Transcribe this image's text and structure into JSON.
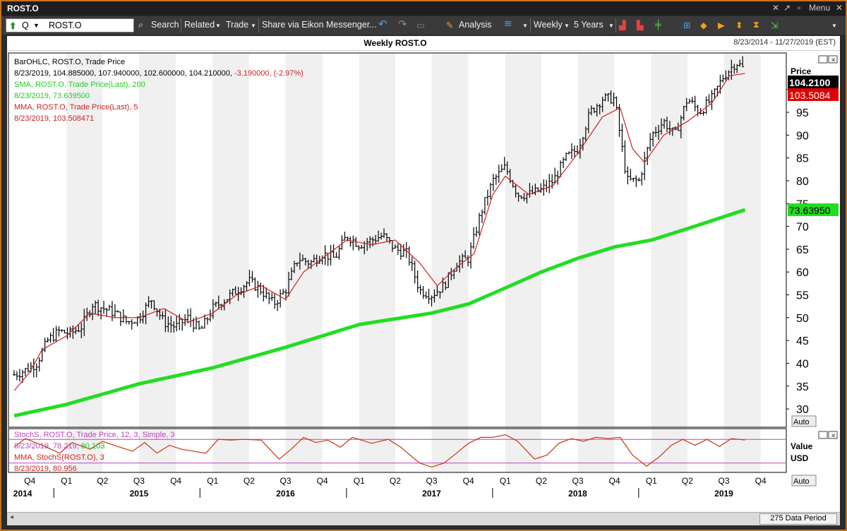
{
  "window": {
    "title": "ROST.O",
    "menu_label": "Menu"
  },
  "toolbar": {
    "ric_value": "ROST.O",
    "q_label": "Q",
    "search_label": "Search",
    "related_label": "Related",
    "trade_label": "Trade",
    "share_label": "Share via Eikon Messenger...",
    "analysis_label": "Analysis",
    "interval_label": "Weekly",
    "range_label": "5 Years"
  },
  "chart_header": {
    "title": "Weekly ROST.O",
    "date_range": "8/23/2014 - 11/27/2019 (EST)"
  },
  "legend": {
    "line1": "BarOHLC, ROST.O, Trade Price",
    "line2": "8/23/2019, 104.885000, 107.940000, 102.600000, 104.210000,",
    "line2_change": "-3.190000, (-2.97%)",
    "line3": "SMA, ROST.O, Trade Price(Last), 200",
    "line4": "8/23/2019, 73.639500",
    "line5": "MMA, ROST.O, Trade Price(Last), 5",
    "line6": "8/23/2019, 103.508471"
  },
  "stoch_legend": {
    "line1": "StochS, ROST.O, Trade Price, 12, 3, Simple, 3",
    "line2a": "8/23/2019, 78.219,",
    "line2b": "80.103",
    "line3": "MMA, StochS(ROST.O), 3",
    "line4": "8/23/2019, 80.956"
  },
  "axis": {
    "price_label": "Price",
    "value_label": "Value",
    "usd_label": "USD",
    "auto_label": "Auto",
    "last_price": "104.2100",
    "mma_value": "103.5084",
    "sma_value": "73.63950"
  },
  "footer": {
    "data_period": "275 Data Period"
  },
  "colors": {
    "bars": "#000000",
    "sma": "#22dd22",
    "mma": "#cc2222",
    "stoch_k": "#cc3311",
    "bands": "#bb44bb"
  },
  "chart_data": [
    {
      "type": "line",
      "title": "Weekly ROST.O",
      "ylabel": "Price",
      "ylim": [
        26,
        108
      ],
      "yticks": [
        30,
        35,
        40,
        45,
        50,
        55,
        60,
        65,
        70,
        75,
        80,
        85,
        90,
        95,
        100
      ],
      "x_range": [
        "2014-08-23",
        "2019-11-27"
      ],
      "x_quarters": [
        {
          "label": "Q4",
          "date": "2014-10-01"
        },
        {
          "label": "Q1",
          "date": "2015-01-01"
        },
        {
          "label": "Q2",
          "date": "2015-04-01"
        },
        {
          "label": "Q3",
          "date": "2015-07-01"
        },
        {
          "label": "Q4",
          "date": "2015-10-01"
        },
        {
          "label": "Q1",
          "date": "2016-01-01"
        },
        {
          "label": "Q2",
          "date": "2016-04-01"
        },
        {
          "label": "Q3",
          "date": "2016-07-01"
        },
        {
          "label": "Q4",
          "date": "2016-10-01"
        },
        {
          "label": "Q1",
          "date": "2017-01-01"
        },
        {
          "label": "Q2",
          "date": "2017-04-01"
        },
        {
          "label": "Q3",
          "date": "2017-07-01"
        },
        {
          "label": "Q4",
          "date": "2017-10-01"
        },
        {
          "label": "Q1",
          "date": "2018-01-01"
        },
        {
          "label": "Q2",
          "date": "2018-04-01"
        },
        {
          "label": "Q3",
          "date": "2018-07-01"
        },
        {
          "label": "Q4",
          "date": "2018-10-01"
        },
        {
          "label": "Q1",
          "date": "2019-01-01"
        },
        {
          "label": "Q2",
          "date": "2019-04-01"
        },
        {
          "label": "Q3",
          "date": "2019-07-01"
        },
        {
          "label": "Q4",
          "date": "2019-10-01"
        }
      ],
      "x_years": [
        {
          "label": "2014",
          "date": "2014-10-01"
        },
        {
          "label": "2015",
          "date": "2015-07-01"
        },
        {
          "label": "2016",
          "date": "2016-07-01"
        },
        {
          "label": "2017",
          "date": "2017-07-01"
        },
        {
          "label": "2018",
          "date": "2018-07-01"
        },
        {
          "label": "2019",
          "date": "2019-07-01"
        }
      ],
      "series": [
        {
          "name": "BarOHLC, ROST.O, Trade Price",
          "kind": "bars",
          "points": [
            [
              "2014-08-23",
              37.5
            ],
            [
              "2014-09-20",
              38.5
            ],
            [
              "2014-10-18",
              40
            ],
            [
              "2014-11-15",
              45
            ],
            [
              "2014-12-13",
              47
            ],
            [
              "2015-01-10",
              46.5
            ],
            [
              "2015-02-07",
              48
            ],
            [
              "2015-03-07",
              53
            ],
            [
              "2015-04-04",
              52
            ],
            [
              "2015-05-02",
              51
            ],
            [
              "2015-06-01",
              49
            ],
            [
              "2015-07-01",
              50
            ],
            [
              "2015-08-01",
              54
            ],
            [
              "2015-09-01",
              49
            ],
            [
              "2015-10-01",
              48
            ],
            [
              "2015-11-01",
              50
            ],
            [
              "2015-12-01",
              47
            ],
            [
              "2016-01-01",
              52
            ],
            [
              "2016-02-01",
              54
            ],
            [
              "2016-03-01",
              56
            ],
            [
              "2016-04-01",
              58
            ],
            [
              "2016-05-01",
              56
            ],
            [
              "2016-06-01",
              53
            ],
            [
              "2016-07-01",
              56
            ],
            [
              "2016-08-01",
              63
            ],
            [
              "2016-09-01",
              62
            ],
            [
              "2016-10-01",
              64
            ],
            [
              "2016-11-01",
              63
            ],
            [
              "2016-12-01",
              68
            ],
            [
              "2017-01-01",
              66
            ],
            [
              "2017-02-01",
              67
            ],
            [
              "2017-03-01",
              68
            ],
            [
              "2017-04-01",
              65
            ],
            [
              "2017-05-01",
              64
            ],
            [
              "2017-06-01",
              56
            ],
            [
              "2017-07-01",
              55
            ],
            [
              "2017-08-01",
              57
            ],
            [
              "2017-09-01",
              62
            ],
            [
              "2017-10-01",
              63
            ],
            [
              "2017-11-01",
              73
            ],
            [
              "2017-12-01",
              80
            ],
            [
              "2018-01-01",
              83
            ],
            [
              "2018-02-01",
              77
            ],
            [
              "2018-03-01",
              77
            ],
            [
              "2018-04-01",
              78
            ],
            [
              "2018-05-01",
              80
            ],
            [
              "2018-06-01",
              85
            ],
            [
              "2018-07-01",
              87
            ],
            [
              "2018-08-01",
              95
            ],
            [
              "2018-09-01",
              98
            ],
            [
              "2018-10-01",
              98
            ],
            [
              "2018-11-01",
              80
            ],
            [
              "2018-12-01",
              80
            ],
            [
              "2019-01-01",
              90
            ],
            [
              "2019-02-01",
              93
            ],
            [
              "2019-03-01",
              90
            ],
            [
              "2019-04-01",
              98
            ],
            [
              "2019-05-01",
              95
            ],
            [
              "2019-06-01",
              98
            ],
            [
              "2019-07-01",
              103
            ],
            [
              "2019-08-01",
              106
            ],
            [
              "2019-08-23",
              104.21
            ]
          ]
        },
        {
          "name": "SMA, ROST.O, Trade Price(Last), 200",
          "kind": "line",
          "points": [
            [
              "2014-08-23",
              28.5
            ],
            [
              "2015-01-01",
              31
            ],
            [
              "2015-07-01",
              35.5
            ],
            [
              "2016-01-01",
              39
            ],
            [
              "2016-07-01",
              43.5
            ],
            [
              "2017-01-01",
              48.5
            ],
            [
              "2017-07-01",
              51
            ],
            [
              "2017-10-01",
              53
            ],
            [
              "2018-01-01",
              56.5
            ],
            [
              "2018-04-01",
              60
            ],
            [
              "2018-07-01",
              63
            ],
            [
              "2018-10-01",
              65.5
            ],
            [
              "2019-01-01",
              67
            ],
            [
              "2019-04-01",
              69.5
            ],
            [
              "2019-08-23",
              73.6395
            ]
          ]
        },
        {
          "name": "MMA, ROST.O, Trade Price(Last), 5",
          "kind": "line",
          "points": [
            [
              "2014-08-23",
              34
            ],
            [
              "2014-10-01",
              38
            ],
            [
              "2014-11-01",
              43
            ],
            [
              "2015-01-01",
              46
            ],
            [
              "2015-03-01",
              51
            ],
            [
              "2015-05-01",
              50
            ],
            [
              "2015-07-01",
              50
            ],
            [
              "2015-09-01",
              52
            ],
            [
              "2015-11-01",
              49
            ],
            [
              "2016-01-01",
              51
            ],
            [
              "2016-03-01",
              55
            ],
            [
              "2016-05-01",
              57
            ],
            [
              "2016-07-01",
              54
            ],
            [
              "2016-08-15",
              60
            ],
            [
              "2016-10-01",
              63
            ],
            [
              "2016-12-01",
              67
            ],
            [
              "2017-02-01",
              66
            ],
            [
              "2017-04-01",
              67
            ],
            [
              "2017-06-01",
              62
            ],
            [
              "2017-07-15",
              57
            ],
            [
              "2017-09-01",
              61
            ],
            [
              "2017-10-15",
              64
            ],
            [
              "2017-12-01",
              77
            ],
            [
              "2018-01-01",
              81
            ],
            [
              "2018-03-01",
              77
            ],
            [
              "2018-05-01",
              79
            ],
            [
              "2018-07-01",
              86
            ],
            [
              "2018-09-01",
              94
            ],
            [
              "2018-10-15",
              96
            ],
            [
              "2018-11-15",
              87
            ],
            [
              "2018-12-15",
              84
            ],
            [
              "2019-02-01",
              90
            ],
            [
              "2019-04-01",
              93
            ],
            [
              "2019-06-01",
              97
            ],
            [
              "2019-07-15",
              103
            ],
            [
              "2019-08-23",
              103.508
            ]
          ]
        }
      ]
    },
    {
      "type": "line",
      "title": "StochS, ROST.O, Trade Price, 12, 3, Simple, 3",
      "ylim": [
        0,
        100
      ],
      "bands": [
        80,
        20
      ],
      "series": [
        {
          "name": "StochS",
          "points": [
            [
              "2014-08-23",
              60
            ],
            [
              "2014-09-20",
              82
            ],
            [
              "2014-11-01",
              65
            ],
            [
              "2014-12-15",
              45
            ],
            [
              "2015-01-15",
              72
            ],
            [
              "2015-03-01",
              55
            ],
            [
              "2015-04-01",
              75
            ],
            [
              "2015-05-15",
              60
            ],
            [
              "2015-06-15",
              50
            ],
            [
              "2015-07-15",
              72
            ],
            [
              "2015-08-15",
              45
            ],
            [
              "2015-09-15",
              65
            ],
            [
              "2015-10-15",
              55
            ],
            [
              "2015-12-15",
              45
            ],
            [
              "2016-01-15",
              80
            ],
            [
              "2016-02-15",
              78
            ],
            [
              "2016-03-15",
              80
            ],
            [
              "2016-05-01",
              78
            ],
            [
              "2016-06-15",
              30
            ],
            [
              "2016-07-15",
              55
            ],
            [
              "2016-08-15",
              85
            ],
            [
              "2016-09-15",
              72
            ],
            [
              "2016-10-15",
              78
            ],
            [
              "2016-11-15",
              60
            ],
            [
              "2016-12-15",
              85
            ],
            [
              "2017-02-01",
              70
            ],
            [
              "2017-03-15",
              80
            ],
            [
              "2017-04-15",
              60
            ],
            [
              "2017-06-01",
              20
            ],
            [
              "2017-07-01",
              10
            ],
            [
              "2017-08-01",
              20
            ],
            [
              "2017-09-01",
              45
            ],
            [
              "2017-10-01",
              70
            ],
            [
              "2017-11-01",
              85
            ],
            [
              "2017-12-01",
              85
            ],
            [
              "2018-01-01",
              92
            ],
            [
              "2018-02-01",
              75
            ],
            [
              "2018-03-15",
              30
            ],
            [
              "2018-04-15",
              40
            ],
            [
              "2018-05-15",
              70
            ],
            [
              "2018-06-15",
              82
            ],
            [
              "2018-07-15",
              75
            ],
            [
              "2018-08-15",
              85
            ],
            [
              "2018-09-15",
              82
            ],
            [
              "2018-10-15",
              85
            ],
            [
              "2018-11-15",
              40
            ],
            [
              "2018-12-20",
              12
            ],
            [
              "2019-01-20",
              35
            ],
            [
              "2019-02-20",
              65
            ],
            [
              "2019-03-20",
              80
            ],
            [
              "2019-04-20",
              65
            ],
            [
              "2019-05-20",
              80
            ],
            [
              "2019-06-20",
              62
            ],
            [
              "2019-07-20",
              82
            ],
            [
              "2019-08-23",
              78.219
            ]
          ]
        }
      ]
    }
  ]
}
